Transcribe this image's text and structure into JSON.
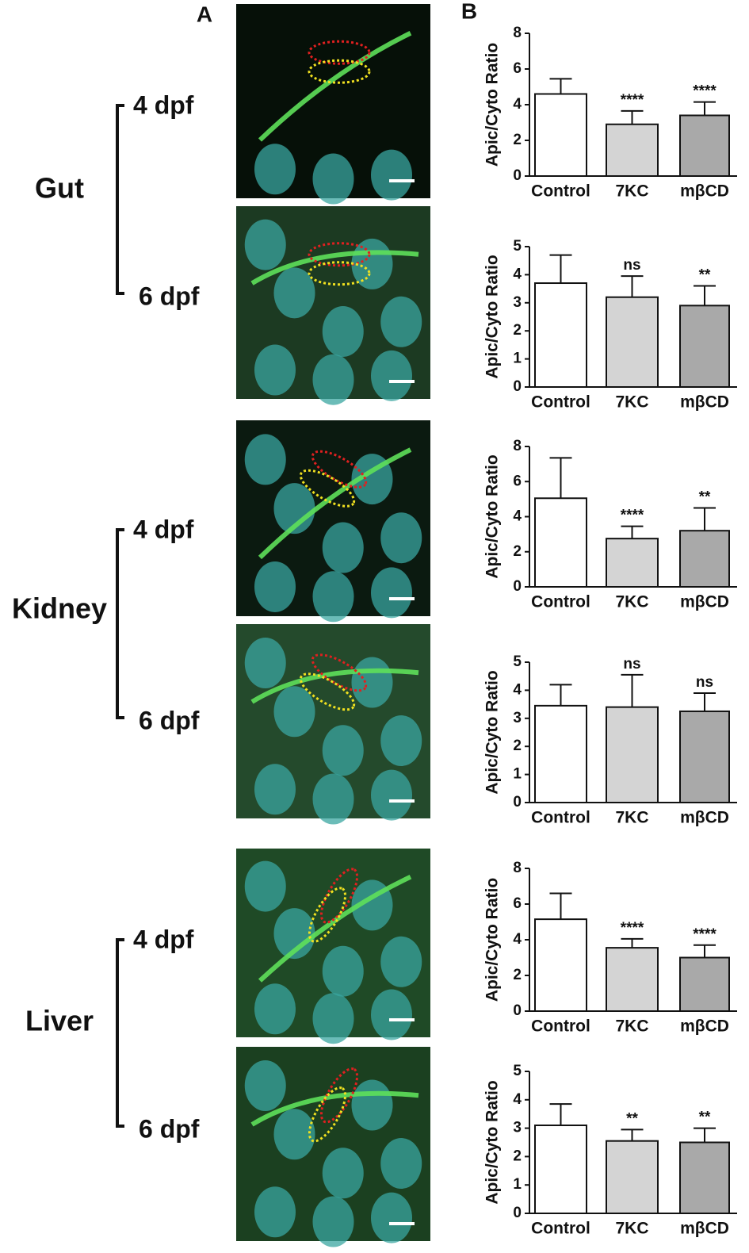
{
  "panel_labels": [
    "A",
    "B"
  ],
  "groups": [
    {
      "tissue": "Gut",
      "stages": [
        "4 dpf",
        "6 dpf"
      ]
    },
    {
      "tissue": "Kidney",
      "stages": [
        "4 dpf",
        "6 dpf"
      ]
    },
    {
      "tissue": "Liver",
      "stages": [
        "4 dpf",
        "6 dpf"
      ]
    }
  ],
  "chart_data": [
    {
      "type": "bar",
      "ylabel": "Apic/Cyto Ratio",
      "categories": [
        "Control",
        "7KC",
        "mβCD"
      ],
      "values": [
        4.6,
        2.9,
        3.4
      ],
      "errors": [
        0.85,
        0.75,
        0.75
      ],
      "annotations": [
        null,
        "****",
        "****"
      ],
      "colors": [
        "#ffffff",
        "#d4d4d4",
        "#a9a9a9"
      ],
      "ylim": [
        0,
        8
      ],
      "yticks": [
        0,
        2,
        4,
        6,
        8
      ]
    },
    {
      "type": "bar",
      "ylabel": "Apic/Cyto Ratio",
      "categories": [
        "Control",
        "7KC",
        "mβCD"
      ],
      "values": [
        3.7,
        3.2,
        2.9
      ],
      "errors": [
        1.0,
        0.75,
        0.7
      ],
      "annotations": [
        null,
        "ns",
        "**"
      ],
      "colors": [
        "#ffffff",
        "#d4d4d4",
        "#a9a9a9"
      ],
      "ylim": [
        0,
        5
      ],
      "yticks": [
        0,
        1,
        2,
        3,
        4,
        5
      ]
    },
    {
      "type": "bar",
      "ylabel": "Apic/Cyto Ratio",
      "categories": [
        "Control",
        "7KC",
        "mβCD"
      ],
      "values": [
        5.05,
        2.75,
        3.2
      ],
      "errors": [
        2.3,
        0.7,
        1.3
      ],
      "annotations": [
        null,
        "****",
        "**"
      ],
      "colors": [
        "#ffffff",
        "#d4d4d4",
        "#a9a9a9"
      ],
      "ylim": [
        0,
        8
      ],
      "yticks": [
        0,
        2,
        4,
        6,
        8
      ]
    },
    {
      "type": "bar",
      "ylabel": "Apic/Cyto Ratio",
      "categories": [
        "Control",
        "7KC",
        "mβCD"
      ],
      "values": [
        3.45,
        3.4,
        3.25
      ],
      "errors": [
        0.75,
        1.15,
        0.65
      ],
      "annotations": [
        null,
        "ns",
        "ns"
      ],
      "colors": [
        "#ffffff",
        "#d4d4d4",
        "#a9a9a9"
      ],
      "ylim": [
        0,
        5
      ],
      "yticks": [
        0,
        1,
        2,
        3,
        4,
        5
      ]
    },
    {
      "type": "bar",
      "ylabel": "Apic/Cyto Ratio",
      "categories": [
        "Control",
        "7KC",
        "mβCD"
      ],
      "values": [
        5.15,
        3.55,
        3.0
      ],
      "errors": [
        1.45,
        0.5,
        0.7
      ],
      "annotations": [
        null,
        "****",
        "****"
      ],
      "colors": [
        "#ffffff",
        "#d4d4d4",
        "#a9a9a9"
      ],
      "ylim": [
        0,
        8
      ],
      "yticks": [
        0,
        2,
        4,
        6,
        8
      ]
    },
    {
      "type": "bar",
      "ylabel": "Apic/Cyto Ratio",
      "categories": [
        "Control",
        "7KC",
        "mβCD"
      ],
      "values": [
        3.1,
        2.55,
        2.5
      ],
      "errors": [
        0.75,
        0.4,
        0.5
      ],
      "annotations": [
        null,
        "**",
        "**"
      ],
      "colors": [
        "#ffffff",
        "#d4d4d4",
        "#a9a9a9"
      ],
      "ylim": [
        0,
        5
      ],
      "yticks": [
        0,
        1,
        2,
        3,
        4,
        5
      ]
    }
  ]
}
